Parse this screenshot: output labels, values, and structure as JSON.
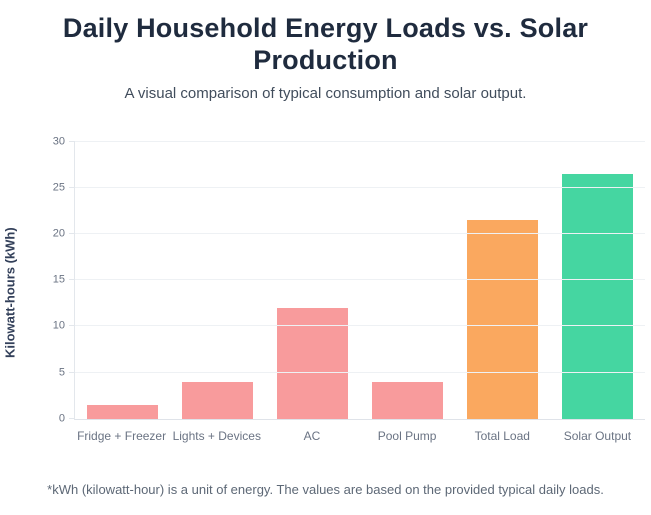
{
  "page": {
    "title": "Daily Household Energy Loads vs. Solar Production",
    "subtitle": "A visual comparison of typical consumption and solar output.",
    "footnote": "*kWh (kilowatt-hour) is a unit of energy. The values are based on the provided typical daily loads."
  },
  "chart_data": {
    "type": "bar",
    "title": "Daily Household Energy Loads vs. Solar Production",
    "categories": [
      "Fridge + Freezer",
      "Lights + Devices",
      "AC",
      "Pool Pump",
      "Total Load",
      "Solar Output"
    ],
    "values": [
      1.5,
      4,
      12,
      4,
      21.5,
      26.5
    ],
    "bar_colors": [
      "#f89b9c",
      "#f89b9c",
      "#f89b9c",
      "#f89b9c",
      "#faa85f",
      "#45d6a1"
    ],
    "xlabel": "",
    "ylabel": "Kilowatt-hours (kWh)",
    "ylim": [
      0,
      30
    ],
    "yticks": [
      0,
      5,
      10,
      15,
      20,
      25,
      30
    ],
    "grid": true,
    "legend": "none"
  }
}
